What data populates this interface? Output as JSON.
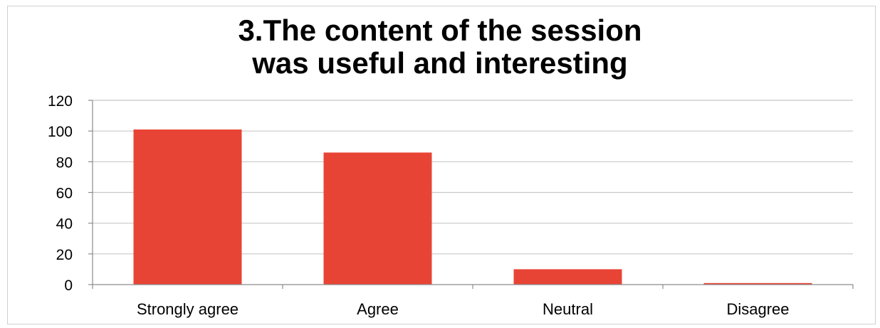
{
  "chart_data": {
    "type": "bar",
    "title_lines": [
      "3.The content of the session",
      "was useful and interesting"
    ],
    "categories": [
      "Strongly agree",
      "Agree",
      "Neutral",
      "Disagree"
    ],
    "values": [
      101,
      86,
      10,
      1
    ],
    "ylim": [
      0,
      120
    ],
    "yticks": [
      "0",
      "20",
      "40",
      "60",
      "80",
      "100",
      "120"
    ],
    "ytick_values": [
      0,
      20,
      40,
      60,
      80,
      100,
      120
    ],
    "grid": true,
    "legend": "none",
    "bar_color": "#e84435",
    "grid_color": "#c8c8c8"
  }
}
